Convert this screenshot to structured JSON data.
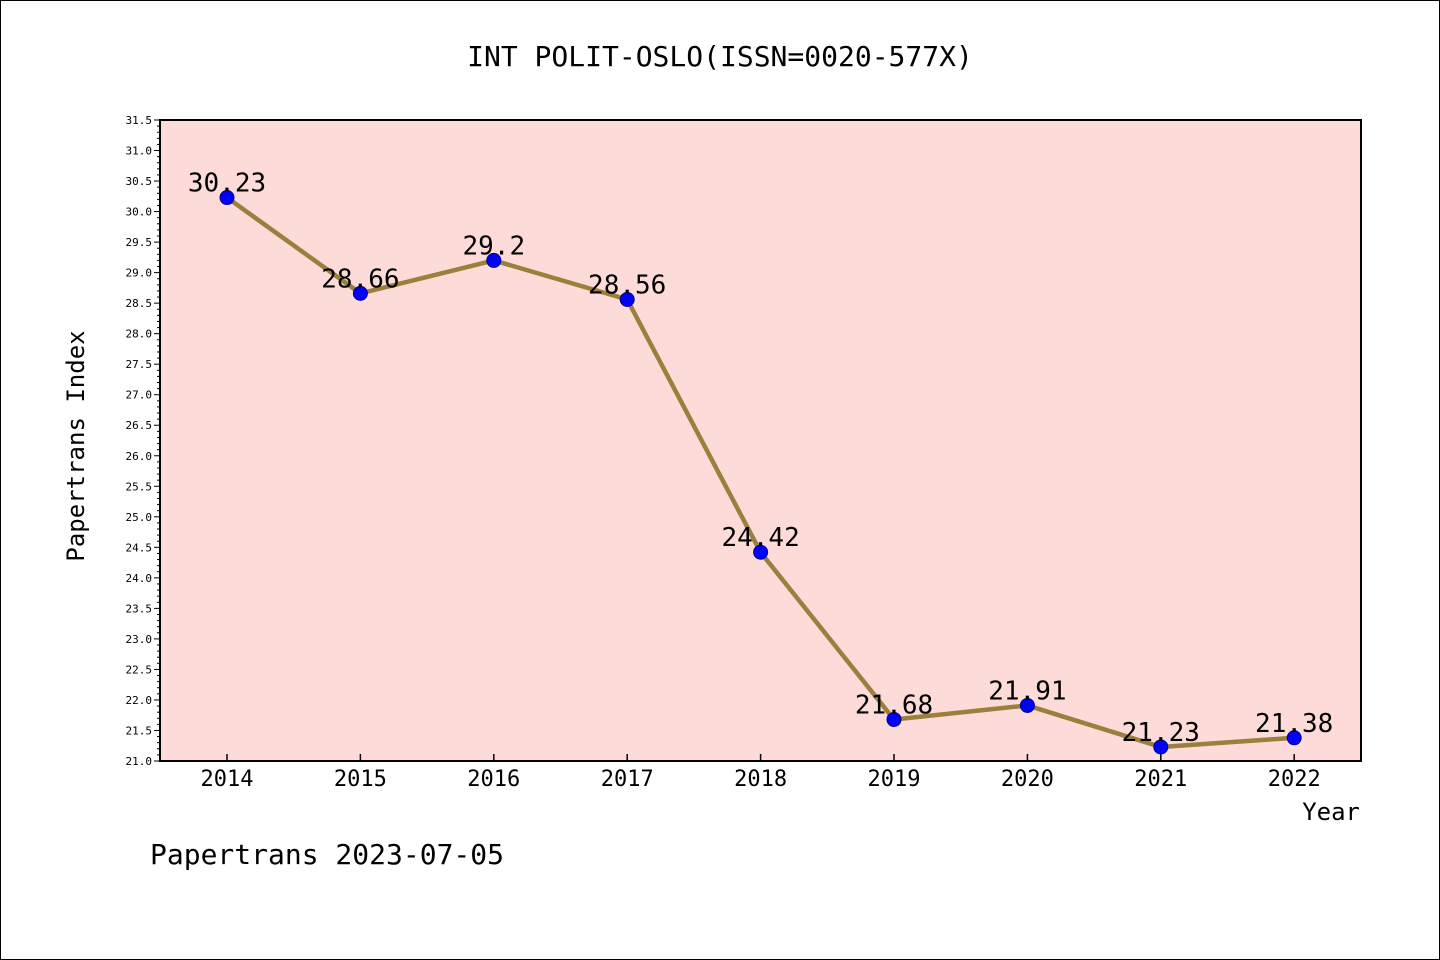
{
  "chart_data": {
    "type": "line",
    "title": "INT POLIT-OSLO(ISSN=0020-577X)",
    "xlabel": "Year",
    "ylabel": "Papertrans Index",
    "footer": "Papertrans 2023-07-05",
    "categories": [
      "2014",
      "2015",
      "2016",
      "2017",
      "2018",
      "2019",
      "2020",
      "2021",
      "2022"
    ],
    "values": [
      30.23,
      28.66,
      29.2,
      28.56,
      24.42,
      21.68,
      21.91,
      21.23,
      21.38
    ],
    "data_labels": [
      "30.23",
      "28.66",
      "29.2",
      "28.56",
      "24.42",
      "21.68",
      "21.91",
      "21.23",
      "21.38"
    ],
    "ylim": [
      21.0,
      31.5
    ],
    "ytick_step": 0.5,
    "yticks": [
      "21.0",
      "21.5",
      "22.0",
      "22.5",
      "23.0",
      "23.5",
      "24.0",
      "24.5",
      "25.0",
      "25.5",
      "26.0",
      "26.5",
      "27.0",
      "27.5",
      "28.0",
      "28.5",
      "29.0",
      "29.5",
      "30.0",
      "30.5",
      "31.0",
      "31.5"
    ],
    "grid": false,
    "colors": {
      "plot_background": "#fddbd9",
      "line": "#9b7f3c",
      "marker": "#0000ff",
      "marker_edge": "#00008b"
    }
  }
}
